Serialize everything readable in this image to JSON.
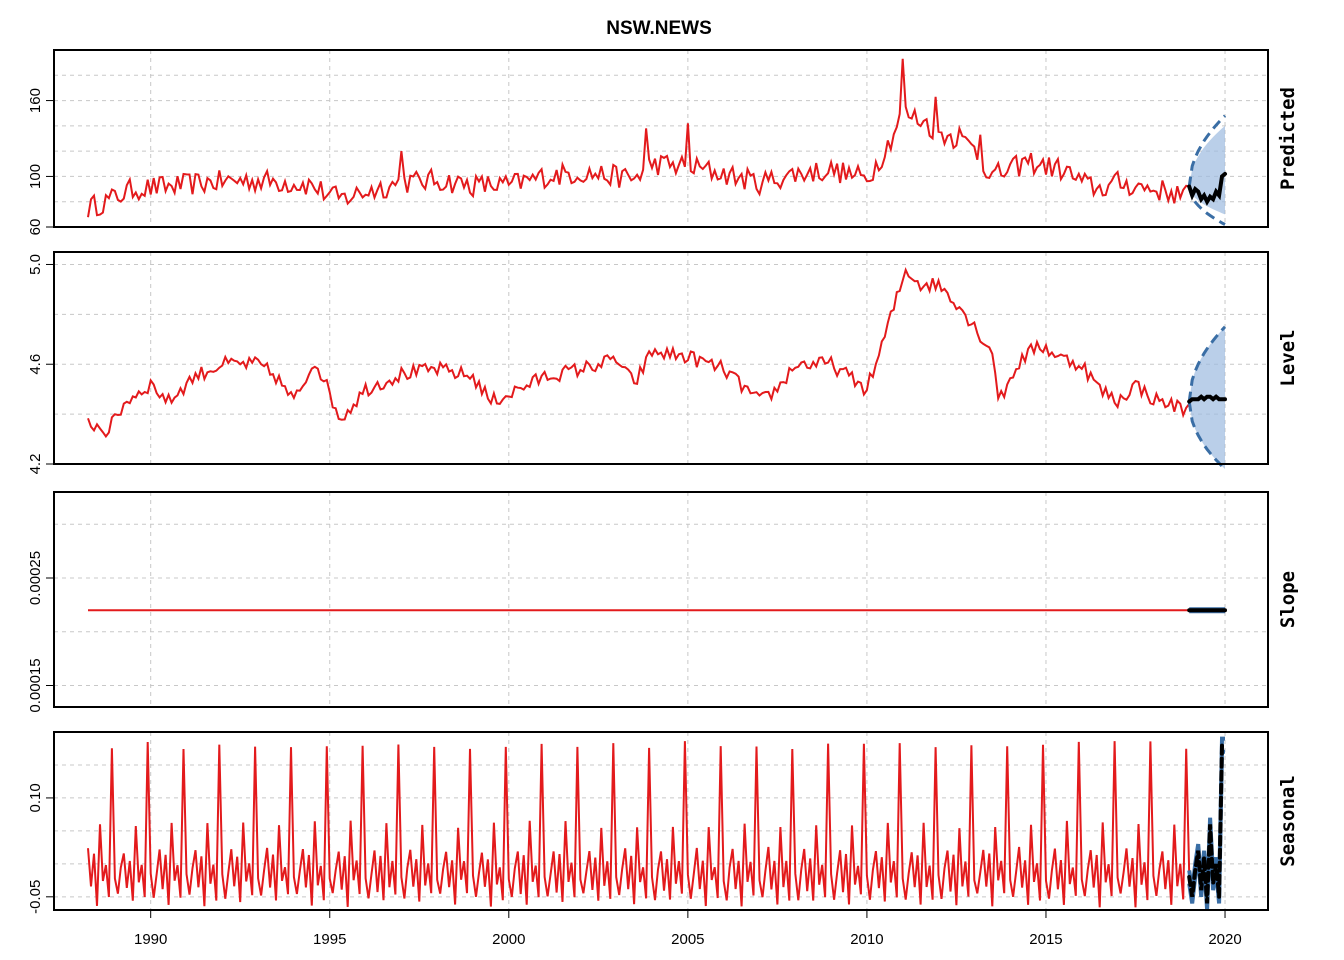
{
  "chart_data": {
    "type": "line",
    "title": "NSW.NEWS",
    "x_ticks": [
      1990,
      1995,
      2000,
      2005,
      2010,
      2015,
      2020
    ],
    "x_range": [
      1987.3,
      2021.2
    ],
    "data_start": 1988.25,
    "forecast_start": 2019.0,
    "forecast_end": 2020.0,
    "colors": {
      "fitted": "#e31a1c",
      "forecast": "#000000",
      "interval": "#3a6ea5",
      "band": "#9dbbe0",
      "grid": "#c8c8c8"
    },
    "panels": [
      {
        "name": "Predicted",
        "ylim": [
          60,
          200
        ],
        "y_ticks": [
          60,
          100,
          160
        ],
        "y_tick_labels": [
          "60",
          "100",
          "160"
        ],
        "anchors": [
          [
            1988.25,
            75
          ],
          [
            1988.9,
            82
          ],
          [
            1989.5,
            90
          ],
          [
            1990.5,
            92
          ],
          [
            1991.5,
            95
          ],
          [
            1992.5,
            97
          ],
          [
            1993.5,
            96
          ],
          [
            1994.5,
            93
          ],
          [
            1995.0,
            85
          ],
          [
            1995.3,
            82
          ],
          [
            1996.0,
            88
          ],
          [
            1997.0,
            95
          ],
          [
            1998.0,
            97
          ],
          [
            1999.0,
            93
          ],
          [
            2000.0,
            93
          ],
          [
            2001.0,
            100
          ],
          [
            2002.0,
            103
          ],
          [
            2003.0,
            100
          ],
          [
            2003.5,
            98
          ],
          [
            2004.0,
            110
          ],
          [
            2005.0,
            108
          ],
          [
            2006.0,
            102
          ],
          [
            2007.0,
            95
          ],
          [
            2008.0,
            102
          ],
          [
            2009.0,
            105
          ],
          [
            2010.0,
            98
          ],
          [
            2010.5,
            120
          ],
          [
            2011.0,
            150
          ],
          [
            2011.5,
            145
          ],
          [
            2012.0,
            135
          ],
          [
            2012.5,
            130
          ],
          [
            2013.0,
            122
          ],
          [
            2013.5,
            100
          ],
          [
            2014.0,
            105
          ],
          [
            2014.5,
            112
          ],
          [
            2015.0,
            108
          ],
          [
            2015.5,
            105
          ],
          [
            2016.0,
            95
          ],
          [
            2016.5,
            90
          ],
          [
            2017.0,
            95
          ],
          [
            2018.0,
            90
          ],
          [
            2018.9,
            85
          ]
        ],
        "spikes": [
          [
            1997.0,
            120
          ],
          [
            2003.8,
            138
          ],
          [
            2005.0,
            142
          ],
          [
            2011.0,
            193
          ],
          [
            2011.9,
            163
          ],
          [
            2012.6,
            138
          ],
          [
            2013.2,
            133
          ]
        ],
        "noise": 9,
        "forecast_mean": [
          92,
          85,
          90,
          88,
          82,
          85,
          80,
          84,
          82,
          88,
          85,
          100,
          102
        ],
        "forecast_upper_end": 148,
        "forecast_lower_end": 62,
        "band_upper_end": 140,
        "band_lower_end": 70
      },
      {
        "name": "Level",
        "ylim": [
          4.2,
          5.05
        ],
        "y_ticks": [
          4.2,
          4.6,
          5.0
        ],
        "y_tick_labels": [
          "4.2",
          "4.6",
          "5.0"
        ],
        "anchors": [
          [
            1988.25,
            4.37
          ],
          [
            1988.8,
            4.33
          ],
          [
            1989.3,
            4.45
          ],
          [
            1990.0,
            4.52
          ],
          [
            1990.5,
            4.45
          ],
          [
            1991.2,
            4.55
          ],
          [
            1992.0,
            4.6
          ],
          [
            1993.0,
            4.6
          ],
          [
            1993.5,
            4.55
          ],
          [
            1994.0,
            4.45
          ],
          [
            1994.6,
            4.62
          ],
          [
            1995.0,
            4.48
          ],
          [
            1995.3,
            4.38
          ],
          [
            1996.0,
            4.5
          ],
          [
            1997.0,
            4.56
          ],
          [
            1998.0,
            4.58
          ],
          [
            1999.0,
            4.55
          ],
          [
            1999.5,
            4.45
          ],
          [
            2000.0,
            4.48
          ],
          [
            2001.0,
            4.55
          ],
          [
            2002.0,
            4.58
          ],
          [
            2003.0,
            4.62
          ],
          [
            2003.5,
            4.52
          ],
          [
            2004.0,
            4.65
          ],
          [
            2005.0,
            4.63
          ],
          [
            2006.0,
            4.58
          ],
          [
            2007.0,
            4.45
          ],
          [
            2007.5,
            4.5
          ],
          [
            2008.0,
            4.6
          ],
          [
            2009.0,
            4.6
          ],
          [
            2010.0,
            4.5
          ],
          [
            2010.3,
            4.62
          ],
          [
            2010.8,
            4.85
          ],
          [
            2011.1,
            4.98
          ],
          [
            2011.5,
            4.92
          ],
          [
            2012.0,
            4.92
          ],
          [
            2012.5,
            4.85
          ],
          [
            2013.0,
            4.75
          ],
          [
            2013.5,
            4.65
          ],
          [
            2013.7,
            4.45
          ],
          [
            2014.2,
            4.6
          ],
          [
            2014.8,
            4.68
          ],
          [
            2015.5,
            4.62
          ],
          [
            2016.0,
            4.6
          ],
          [
            2016.5,
            4.5
          ],
          [
            2017.0,
            4.45
          ],
          [
            2017.5,
            4.52
          ],
          [
            2018.0,
            4.46
          ],
          [
            2018.9,
            4.42
          ]
        ],
        "spikes": [],
        "noise": 0.03,
        "forecast_mean": [
          4.45,
          4.46,
          4.46,
          4.46,
          4.47,
          4.46,
          4.47,
          4.47,
          4.46,
          4.47,
          4.46,
          4.46,
          4.46
        ],
        "forecast_upper_end": 4.75,
        "forecast_lower_end": 4.18,
        "band_upper_end": 4.75,
        "band_lower_end": 4.18
      },
      {
        "name": "Slope",
        "ylim": [
          0.00013,
          0.00033
        ],
        "y_ticks": [
          0.00015,
          0.00025
        ],
        "y_tick_labels": [
          "0.00015",
          "0.00025"
        ],
        "grid_values": [
          0.00015,
          0.0002,
          0.00025,
          0.0003
        ],
        "anchors": [
          [
            1988.25,
            0.00022
          ],
          [
            2018.9,
            0.00022
          ]
        ],
        "spikes": [],
        "noise": 0,
        "forecast_mean": [
          0.00022,
          0.00022,
          0.00022,
          0.00022,
          0.00022,
          0.00022,
          0.00022,
          0.00022,
          0.00022,
          0.00022,
          0.00022,
          0.00022,
          0.00022
        ],
        "forecast_upper_end": 0.00022,
        "forecast_lower_end": 0.00022,
        "band_upper_end": 0.00022,
        "band_lower_end": 0.00022
      },
      {
        "name": "Seasonal",
        "ylim": [
          -0.07,
          0.2
        ],
        "y_ticks": [
          -0.05,
          0.1
        ],
        "y_tick_labels": [
          "-0.05",
          "0.10"
        ],
        "grid_values": [
          -0.05,
          0.0,
          0.05,
          0.1,
          0.15
        ],
        "seasonal_pattern": [
          -0.02,
          -0.05,
          -0.01,
          0.02,
          -0.04,
          0.01,
          -0.06,
          0.06,
          -0.03,
          0.0,
          -0.05,
          0.18
        ],
        "forecast_mean": [
          -0.02,
          -0.05,
          -0.01,
          0.02,
          -0.04,
          0.01,
          -0.06,
          0.06,
          -0.03,
          0.0,
          -0.05,
          0.18,
          0.18
        ],
        "forecast_upper_end": 0.18,
        "forecast_lower_end": -0.06,
        "band_upper_end": 0.18,
        "band_lower_end": -0.06
      }
    ]
  }
}
